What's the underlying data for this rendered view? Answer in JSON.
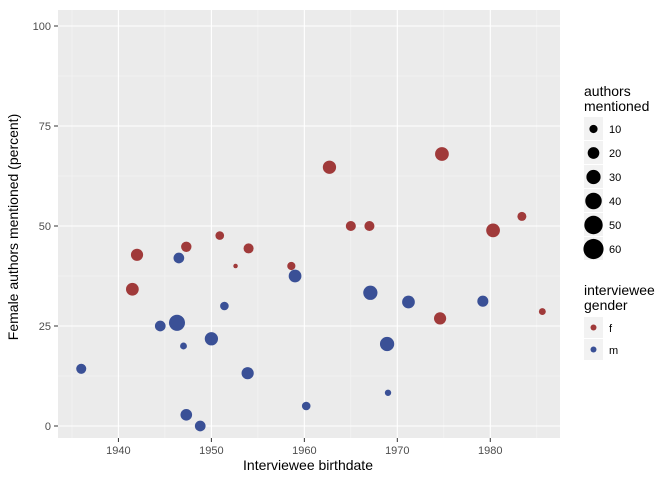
{
  "chart_data": {
    "type": "scatter",
    "xlabel": "Interviewee birthdate",
    "ylabel": "Female authors mentioned (percent)",
    "xlim": [
      1933.5,
      1987.5
    ],
    "ylim": [
      -3,
      104
    ],
    "xticks": [
      1940,
      1950,
      1960,
      1970,
      1980
    ],
    "yticks": [
      0,
      25,
      50,
      75,
      100
    ],
    "grid": true,
    "legend_position": "right",
    "size_legend": {
      "title_lines": [
        "authors",
        "mentioned"
      ],
      "levels": [
        10,
        20,
        30,
        40,
        50,
        60
      ]
    },
    "color_legend": {
      "title_lines": [
        "interviewee",
        "gender"
      ],
      "entries": [
        {
          "label": "f",
          "color": "#a03a3a"
        },
        {
          "label": "m",
          "color": "#3a5096"
        }
      ]
    },
    "points": [
      {
        "x": 1936.0,
        "y": 14.3,
        "gender": "m",
        "authors": 15
      },
      {
        "x": 1941.5,
        "y": 34.2,
        "gender": "f",
        "authors": 24
      },
      {
        "x": 1942.0,
        "y": 42.8,
        "gender": "f",
        "authors": 22
      },
      {
        "x": 1944.5,
        "y": 25.0,
        "gender": "m",
        "authors": 17
      },
      {
        "x": 1946.3,
        "y": 25.8,
        "gender": "m",
        "authors": 38
      },
      {
        "x": 1946.5,
        "y": 42.0,
        "gender": "m",
        "authors": 17
      },
      {
        "x": 1947.0,
        "y": 20.0,
        "gender": "m",
        "authors": 7
      },
      {
        "x": 1947.3,
        "y": 44.8,
        "gender": "f",
        "authors": 16
      },
      {
        "x": 1947.3,
        "y": 2.8,
        "gender": "m",
        "authors": 20
      },
      {
        "x": 1948.8,
        "y": 0.0,
        "gender": "m",
        "authors": 17
      },
      {
        "x": 1950.0,
        "y": 21.8,
        "gender": "m",
        "authors": 26
      },
      {
        "x": 1950.9,
        "y": 47.6,
        "gender": "f",
        "authors": 11
      },
      {
        "x": 1951.4,
        "y": 30.0,
        "gender": "m",
        "authors": 11
      },
      {
        "x": 1952.6,
        "y": 40.0,
        "gender": "f",
        "authors": 3
      },
      {
        "x": 1953.9,
        "y": 13.2,
        "gender": "m",
        "authors": 22
      },
      {
        "x": 1954.0,
        "y": 44.4,
        "gender": "f",
        "authors": 15
      },
      {
        "x": 1958.6,
        "y": 40.0,
        "gender": "f",
        "authors": 10
      },
      {
        "x": 1959.0,
        "y": 37.5,
        "gender": "m",
        "authors": 24
      },
      {
        "x": 1960.2,
        "y": 5.0,
        "gender": "m",
        "authors": 11
      },
      {
        "x": 1962.7,
        "y": 64.7,
        "gender": "f",
        "authors": 26
      },
      {
        "x": 1965.0,
        "y": 50.0,
        "gender": "f",
        "authors": 15
      },
      {
        "x": 1967.0,
        "y": 50.0,
        "gender": "f",
        "authors": 15
      },
      {
        "x": 1967.1,
        "y": 33.3,
        "gender": "m",
        "authors": 30
      },
      {
        "x": 1968.9,
        "y": 20.5,
        "gender": "m",
        "authors": 30
      },
      {
        "x": 1969.0,
        "y": 8.3,
        "gender": "m",
        "authors": 6
      },
      {
        "x": 1971.2,
        "y": 31.0,
        "gender": "m",
        "authors": 24
      },
      {
        "x": 1974.6,
        "y": 26.9,
        "gender": "f",
        "authors": 22
      },
      {
        "x": 1974.8,
        "y": 68.0,
        "gender": "f",
        "authors": 28
      },
      {
        "x": 1979.2,
        "y": 31.2,
        "gender": "m",
        "authors": 18
      },
      {
        "x": 1980.3,
        "y": 48.9,
        "gender": "f",
        "authors": 28
      },
      {
        "x": 1983.4,
        "y": 52.4,
        "gender": "f",
        "authors": 12
      },
      {
        "x": 1985.6,
        "y": 28.6,
        "gender": "f",
        "authors": 7
      }
    ]
  }
}
